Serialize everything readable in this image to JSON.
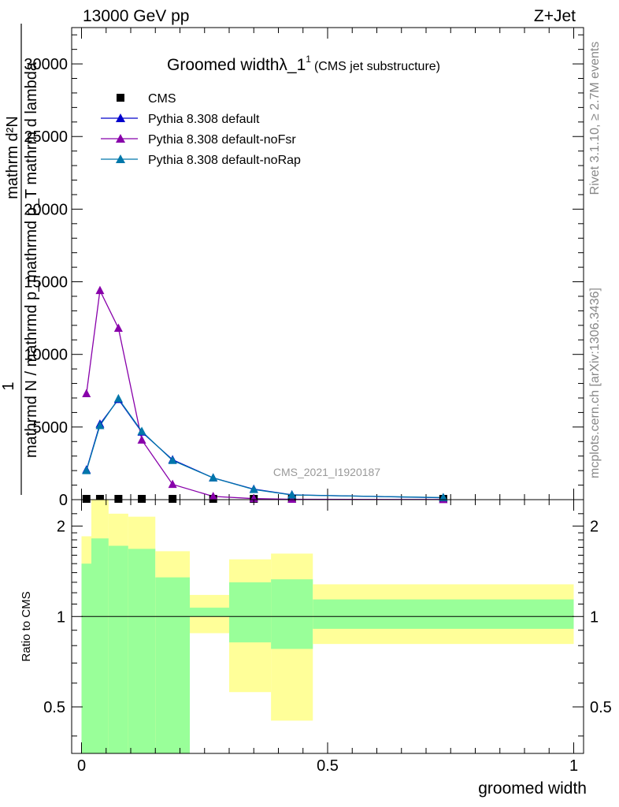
{
  "header": {
    "energy_label": "13000 GeV pp",
    "process_label": "Z+Jet"
  },
  "side_labels": {
    "rivet": "Rivet 3.1.10, ≥ 2.7M events",
    "mcplots": "mcplots.cern.ch [arXiv:1306.3436]"
  },
  "chart_data": [
    {
      "type": "line",
      "title": "Groomed widthλ_1",
      "title_superscript": "1",
      "subtitle": "(CMS jet substructure)",
      "watermark": "CMS_2021_I1920187",
      "ylabel_numerator": "1",
      "ylabel_denominator": "mathrmd N / mathrmd p_mathrmd p_T mathrm d lambda",
      "ylabel_overlay": "mathrm d²N",
      "xlim": [
        -0.02,
        1.02
      ],
      "ylim": [
        0,
        32500
      ],
      "y_ticks": [
        0,
        5000,
        10000,
        15000,
        20000,
        25000,
        30000
      ],
      "y_tick_labels": [
        "0",
        "5000",
        "10000",
        "15000",
        "20000",
        "25000",
        "30000"
      ],
      "x": [
        0.01,
        0.0375,
        0.075,
        0.1225,
        0.185,
        0.2675,
        0.35,
        0.4275,
        0.735
      ],
      "series": [
        {
          "name": "CMS",
          "marker": "square",
          "color": "#000000",
          "values": [
            60,
            60,
            60,
            60,
            60,
            30,
            15,
            10,
            5
          ]
        },
        {
          "name": "Pythia 8.308 default",
          "marker": "triangle",
          "color": "#0000cc",
          "values": [
            2050,
            5200,
            6900,
            4650,
            2750,
            1500,
            720,
            330,
            130
          ]
        },
        {
          "name": "Pythia 8.308 default-noFsr",
          "marker": "triangle",
          "color": "#8800aa",
          "values": [
            7300,
            14400,
            11800,
            4100,
            1050,
            220,
            70,
            25,
            10
          ]
        },
        {
          "name": "Pythia 8.308 default-noRap",
          "marker": "triangle",
          "color": "#0077aa",
          "values": [
            2000,
            5100,
            6950,
            4700,
            2700,
            1500,
            700,
            320,
            140
          ]
        }
      ]
    },
    {
      "type": "area",
      "ylabel": "Ratio to CMS",
      "xlabel": "groomed width",
      "xlim": [
        -0.02,
        1.02
      ],
      "ylim": [
        0.35,
        2.45
      ],
      "y_scale": "log",
      "y_ticks": [
        0.5,
        1,
        2
      ],
      "y_tick_labels": [
        "0.5",
        "1",
        "2"
      ],
      "x_ticks": [
        0,
        0.5,
        1
      ],
      "x_tick_labels": [
        "0",
        "0.5",
        "1"
      ],
      "bins": [
        {
          "x0": 0.0,
          "x1": 0.02,
          "green": [
            0.35,
            1.5
          ],
          "yellow": [
            0.35,
            1.85
          ]
        },
        {
          "x0": 0.02,
          "x1": 0.055,
          "green": [
            0.35,
            1.82
          ],
          "yellow": [
            0.35,
            2.45
          ]
        },
        {
          "x0": 0.055,
          "x1": 0.095,
          "green": [
            0.35,
            1.72
          ],
          "yellow": [
            0.35,
            2.2
          ]
        },
        {
          "x0": 0.095,
          "x1": 0.15,
          "green": [
            0.35,
            1.68
          ],
          "yellow": [
            0.35,
            2.15
          ]
        },
        {
          "x0": 0.15,
          "x1": 0.22,
          "green": [
            0.35,
            1.35
          ],
          "yellow": [
            0.38,
            1.65
          ]
        },
        {
          "x0": 0.22,
          "x1": 0.3,
          "green": [
            1.0,
            1.07
          ],
          "yellow": [
            0.88,
            1.18
          ]
        },
        {
          "x0": 0.3,
          "x1": 0.385,
          "green": [
            0.82,
            1.3
          ],
          "yellow": [
            0.56,
            1.55
          ]
        },
        {
          "x0": 0.385,
          "x1": 0.47,
          "green": [
            0.78,
            1.33
          ],
          "yellow": [
            0.45,
            1.62
          ]
        },
        {
          "x0": 0.47,
          "x1": 1.0,
          "green": [
            0.91,
            1.14
          ],
          "yellow": [
            0.81,
            1.28
          ]
        }
      ]
    }
  ],
  "colors": {
    "green": "#99ff99",
    "yellow": "#ffff99",
    "axis": "#000000",
    "label_grey": "#888888"
  }
}
